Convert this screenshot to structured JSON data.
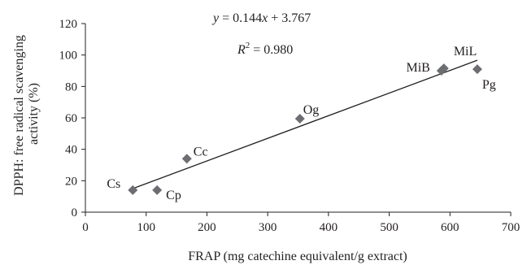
{
  "chart_data": {
    "type": "scatter",
    "xlabel": "FRAP (mg catechine equivalent/g extract)",
    "ylabel": "DPPH: free radical scavenging activity (%)",
    "ylabel_lines": [
      "DPPH: free radical scavenging",
      "activity (%)"
    ],
    "xlim": [
      0,
      700
    ],
    "ylim": [
      0,
      120
    ],
    "x_ticks": [
      "0",
      "100",
      "200",
      "300",
      "400",
      "500",
      "600",
      "700"
    ],
    "y_ticks": [
      "0",
      "20",
      "40",
      "60",
      "80",
      "100",
      "120"
    ],
    "grid": false,
    "legend": "none",
    "marker": "diamond",
    "marker_color": "#6d6e71",
    "points": [
      {
        "label": "Cs",
        "x": 78,
        "y": 14
      },
      {
        "label": "Cp",
        "x": 118,
        "y": 14
      },
      {
        "label": "Cc",
        "x": 167,
        "y": 34
      },
      {
        "label": "Og",
        "x": 353,
        "y": 59.5
      },
      {
        "label": "MiB",
        "x": 586,
        "y": 90
      },
      {
        "label": "MiL",
        "x": 590,
        "y": 91.5
      },
      {
        "label": "Pg",
        "x": 645,
        "y": 91
      }
    ],
    "trendline": {
      "slope": 0.144,
      "intercept": 3.767,
      "x_range": [
        78,
        645
      ],
      "equation": {
        "y": "y",
        "eq": " = 0.144",
        "x": "x",
        "rest": " + 3.767"
      },
      "r2": {
        "R": "R",
        "sup": "2",
        "rest": " = 0.980"
      }
    }
  }
}
